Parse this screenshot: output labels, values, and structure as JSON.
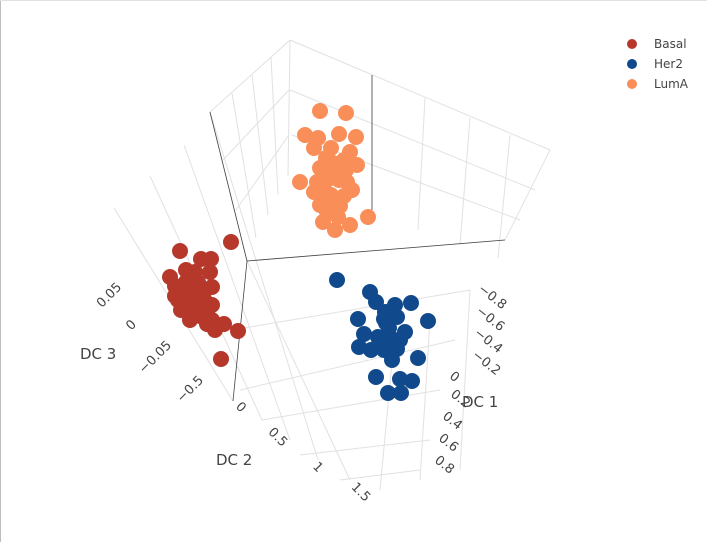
{
  "chart_data": {
    "type": "scatter3d",
    "title": "",
    "axes": {
      "x": {
        "label": "DC 1",
        "ticks": [
          "−0.8",
          "−0.6",
          "−0.4",
          "−0.2",
          "0",
          "0.2",
          "0.4",
          "0.6",
          "0.8"
        ]
      },
      "y": {
        "label": "DC 2",
        "ticks": [
          "0",
          "0.5",
          "1",
          "1.5"
        ]
      },
      "z": {
        "label": "DC 3",
        "ticks": [
          "0.05",
          "0",
          "−0.05",
          "−0.5"
        ]
      }
    },
    "grid": true,
    "legend": {
      "position": "top-right"
    },
    "series": [
      {
        "name": "Basal",
        "color": "#b5382b",
        "points": [
          [
            231,
            242
          ],
          [
            180,
            251
          ],
          [
            201,
            259
          ],
          [
            211,
            259
          ],
          [
            186,
            270
          ],
          [
            195,
            272
          ],
          [
            170,
            277
          ],
          [
            212,
            287
          ],
          [
            204,
            299
          ],
          [
            190,
            303
          ],
          [
            212,
            320
          ],
          [
            238,
            331
          ],
          [
            221,
            359
          ],
          [
            175,
            286
          ],
          [
            182,
            294
          ],
          [
            197,
            290
          ],
          [
            205,
            308
          ],
          [
            181,
            310
          ],
          [
            190,
            320
          ],
          [
            207,
            324
          ],
          [
            224,
            324
          ],
          [
            215,
            330
          ],
          [
            186,
            282
          ],
          [
            198,
            282
          ],
          [
            178,
            300
          ],
          [
            196,
            310
          ],
          [
            212,
            305
          ],
          [
            200,
            316
          ],
          [
            188,
            296
          ],
          [
            175,
            296
          ],
          [
            210,
            272
          ]
        ]
      },
      {
        "name": "Her2",
        "color": "#114a8c",
        "points": [
          [
            337,
            280
          ],
          [
            370,
            292
          ],
          [
            358,
            319
          ],
          [
            376,
            302
          ],
          [
            411,
            303
          ],
          [
            385,
            312
          ],
          [
            397,
            317
          ],
          [
            428,
            321
          ],
          [
            386,
            323
          ],
          [
            405,
            332
          ],
          [
            364,
            334
          ],
          [
            379,
            345
          ],
          [
            391,
            338
          ],
          [
            359,
            347
          ],
          [
            384,
            350
          ],
          [
            397,
            349
          ],
          [
            371,
            350
          ],
          [
            418,
            358
          ],
          [
            392,
            360
          ],
          [
            376,
            377
          ],
          [
            400,
            379
          ],
          [
            412,
            381
          ],
          [
            388,
            393
          ],
          [
            401,
            393
          ],
          [
            384,
            319
          ],
          [
            378,
            337
          ],
          [
            395,
            305
          ],
          [
            389,
            328
          ],
          [
            400,
            340
          ]
        ]
      },
      {
        "name": "LumA",
        "color": "#f98e59",
        "points": [
          [
            320,
            111
          ],
          [
            346,
            113
          ],
          [
            305,
            135
          ],
          [
            318,
            138
          ],
          [
            339,
            134
          ],
          [
            356,
            137
          ],
          [
            314,
            148
          ],
          [
            350,
            152
          ],
          [
            331,
            148
          ],
          [
            333,
            163
          ],
          [
            344,
            160
          ],
          [
            357,
            165
          ],
          [
            320,
            168
          ],
          [
            334,
            171
          ],
          [
            317,
            182
          ],
          [
            327,
            180
          ],
          [
            347,
            182
          ],
          [
            300,
            182
          ],
          [
            314,
            192
          ],
          [
            331,
            195
          ],
          [
            352,
            190
          ],
          [
            320,
            205
          ],
          [
            340,
            206
          ],
          [
            368,
            217
          ],
          [
            323,
            222
          ],
          [
            335,
            230
          ],
          [
            350,
            225
          ],
          [
            338,
            217
          ],
          [
            327,
            212
          ],
          [
            344,
            196
          ],
          [
            322,
            190
          ],
          [
            339,
            180
          ],
          [
            332,
            205
          ],
          [
            346,
            170
          ],
          [
            326,
            158
          ]
        ]
      }
    ]
  }
}
